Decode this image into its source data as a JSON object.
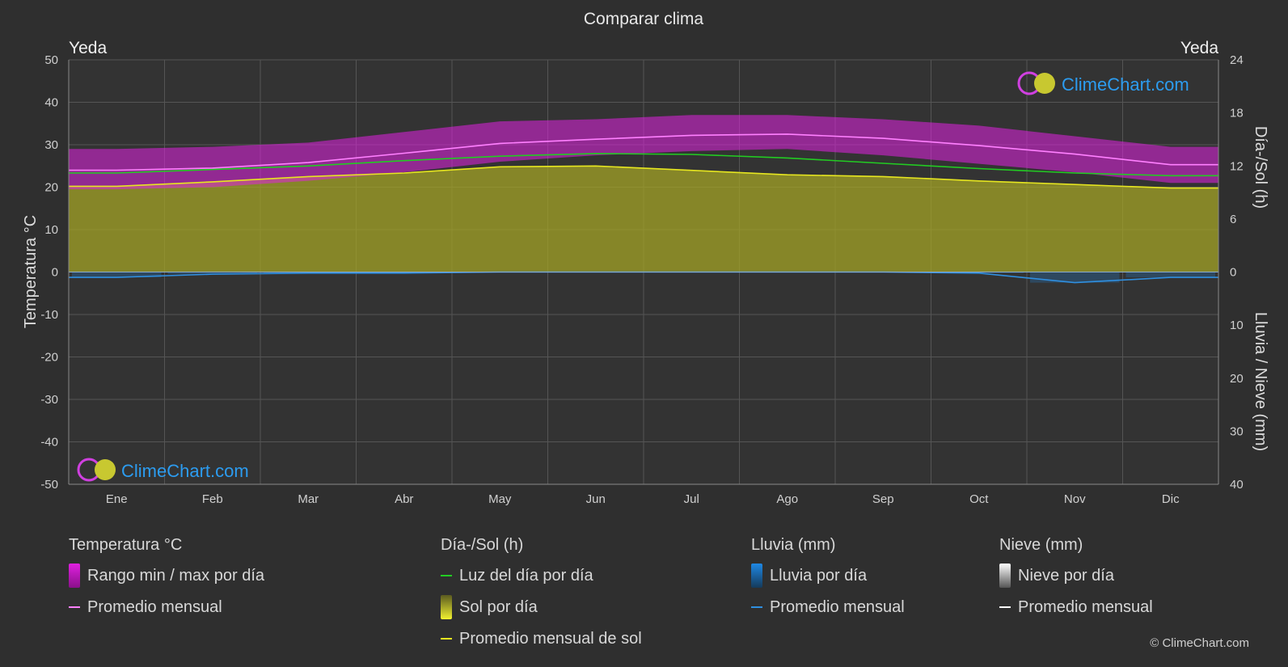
{
  "title": "Comparar clima",
  "location_left": "Yeda",
  "location_right": "Yeda",
  "watermark": "ClimeChart.com",
  "copyright": "© ClimeChart.com",
  "colors": {
    "background": "#2f2f2f",
    "temp_range": "#e020e0",
    "temp_avg": "#ff80ff",
    "daylight": "#22cc22",
    "sunshine_fill": "#a3a326",
    "sunshine_avg": "#e6e620",
    "rain": "#1e88e5",
    "rain_avg": "#2f8fe0",
    "snow_avg": "#ffffff"
  },
  "chart_data": {
    "type": "area",
    "title": "Comparar clima",
    "categories": [
      "Ene",
      "Feb",
      "Mar",
      "Abr",
      "May",
      "Jun",
      "Jul",
      "Ago",
      "Sep",
      "Oct",
      "Nov",
      "Dic"
    ],
    "y_left": {
      "label": "Temperatura °C",
      "ylim": [
        -50,
        50
      ],
      "ticks": [
        50,
        40,
        30,
        20,
        10,
        0,
        -10,
        -20,
        -30,
        -40,
        -50
      ]
    },
    "y_right_top": {
      "label": "Día-/Sol (h)",
      "ylim": [
        0,
        24
      ],
      "ticks": [
        24,
        18,
        12,
        6,
        0
      ]
    },
    "y_right_bottom": {
      "label": "Lluvia / Nieve (mm)",
      "ylim": [
        0,
        40
      ],
      "ticks": [
        0,
        10,
        20,
        30,
        40
      ]
    },
    "grid": true,
    "series": [
      {
        "name": "Promedio mensual",
        "group": "Temperatura °C",
        "unit": "°C",
        "values": [
          24.0,
          24.5,
          25.8,
          28.0,
          30.3,
          31.3,
          32.2,
          32.5,
          31.5,
          29.8,
          27.8,
          25.3
        ]
      },
      {
        "name": "Rango min / max por día",
        "group": "Temperatura °C",
        "unit": "°C",
        "min": [
          19.5,
          20.0,
          21.5,
          23.5,
          26.0,
          27.5,
          28.5,
          29.0,
          27.5,
          25.5,
          23.5,
          21.0
        ],
        "max": [
          29.0,
          29.5,
          30.5,
          33.0,
          35.5,
          36.0,
          37.0,
          37.0,
          36.0,
          34.5,
          32.0,
          29.5
        ]
      },
      {
        "name": "Luz del día por día",
        "group": "Día-/Sol (h)",
        "unit": "h",
        "values": [
          11.2,
          11.6,
          12.0,
          12.6,
          13.1,
          13.4,
          13.3,
          12.9,
          12.3,
          11.7,
          11.2,
          10.9
        ]
      },
      {
        "name": "Sol por día",
        "group": "Día-/Sol (h)",
        "unit": "h",
        "values": [
          9.7,
          10.2,
          10.8,
          11.2,
          11.9,
          12.0,
          11.5,
          11.0,
          10.8,
          10.3,
          9.9,
          9.5
        ]
      },
      {
        "name": "Promedio mensual de sol",
        "group": "Día-/Sol (h)",
        "unit": "h",
        "values": [
          9.7,
          10.2,
          10.8,
          11.2,
          11.9,
          12.0,
          11.5,
          11.0,
          10.8,
          10.3,
          9.9,
          9.5
        ]
      },
      {
        "name": "Lluvia por día",
        "group": "Lluvia (mm)",
        "unit": "mm",
        "values": [
          1.0,
          0.4,
          0.2,
          0.2,
          0.0,
          0.0,
          0.0,
          0.0,
          0.0,
          0.2,
          2.0,
          1.0
        ]
      },
      {
        "name": "Promedio mensual",
        "group": "Lluvia (mm)",
        "unit": "mm",
        "values": [
          1.0,
          0.4,
          0.2,
          0.2,
          0.0,
          0.0,
          0.0,
          0.0,
          0.0,
          0.2,
          2.0,
          1.0
        ]
      },
      {
        "name": "Nieve por día",
        "group": "Nieve (mm)",
        "unit": "mm",
        "values": [
          0,
          0,
          0,
          0,
          0,
          0,
          0,
          0,
          0,
          0,
          0,
          0
        ]
      },
      {
        "name": "Promedio mensual",
        "group": "Nieve (mm)",
        "unit": "mm",
        "values": [
          0,
          0,
          0,
          0,
          0,
          0,
          0,
          0,
          0,
          0,
          0,
          0
        ]
      }
    ]
  },
  "legend": {
    "temperature": {
      "title": "Temperatura °C",
      "range_label": "Rango min / max por día",
      "avg_label": "Promedio mensual"
    },
    "sun": {
      "title": "Día-/Sol (h)",
      "daylight_label": "Luz del día por día",
      "sunshine_label": "Sol por día",
      "sun_avg_label": "Promedio mensual de sol"
    },
    "rain": {
      "title": "Lluvia (mm)",
      "rain_label": "Lluvia por día",
      "avg_label": "Promedio mensual"
    },
    "snow": {
      "title": "Nieve (mm)",
      "snow_label": "Nieve por día",
      "avg_label": "Promedio mensual"
    }
  }
}
